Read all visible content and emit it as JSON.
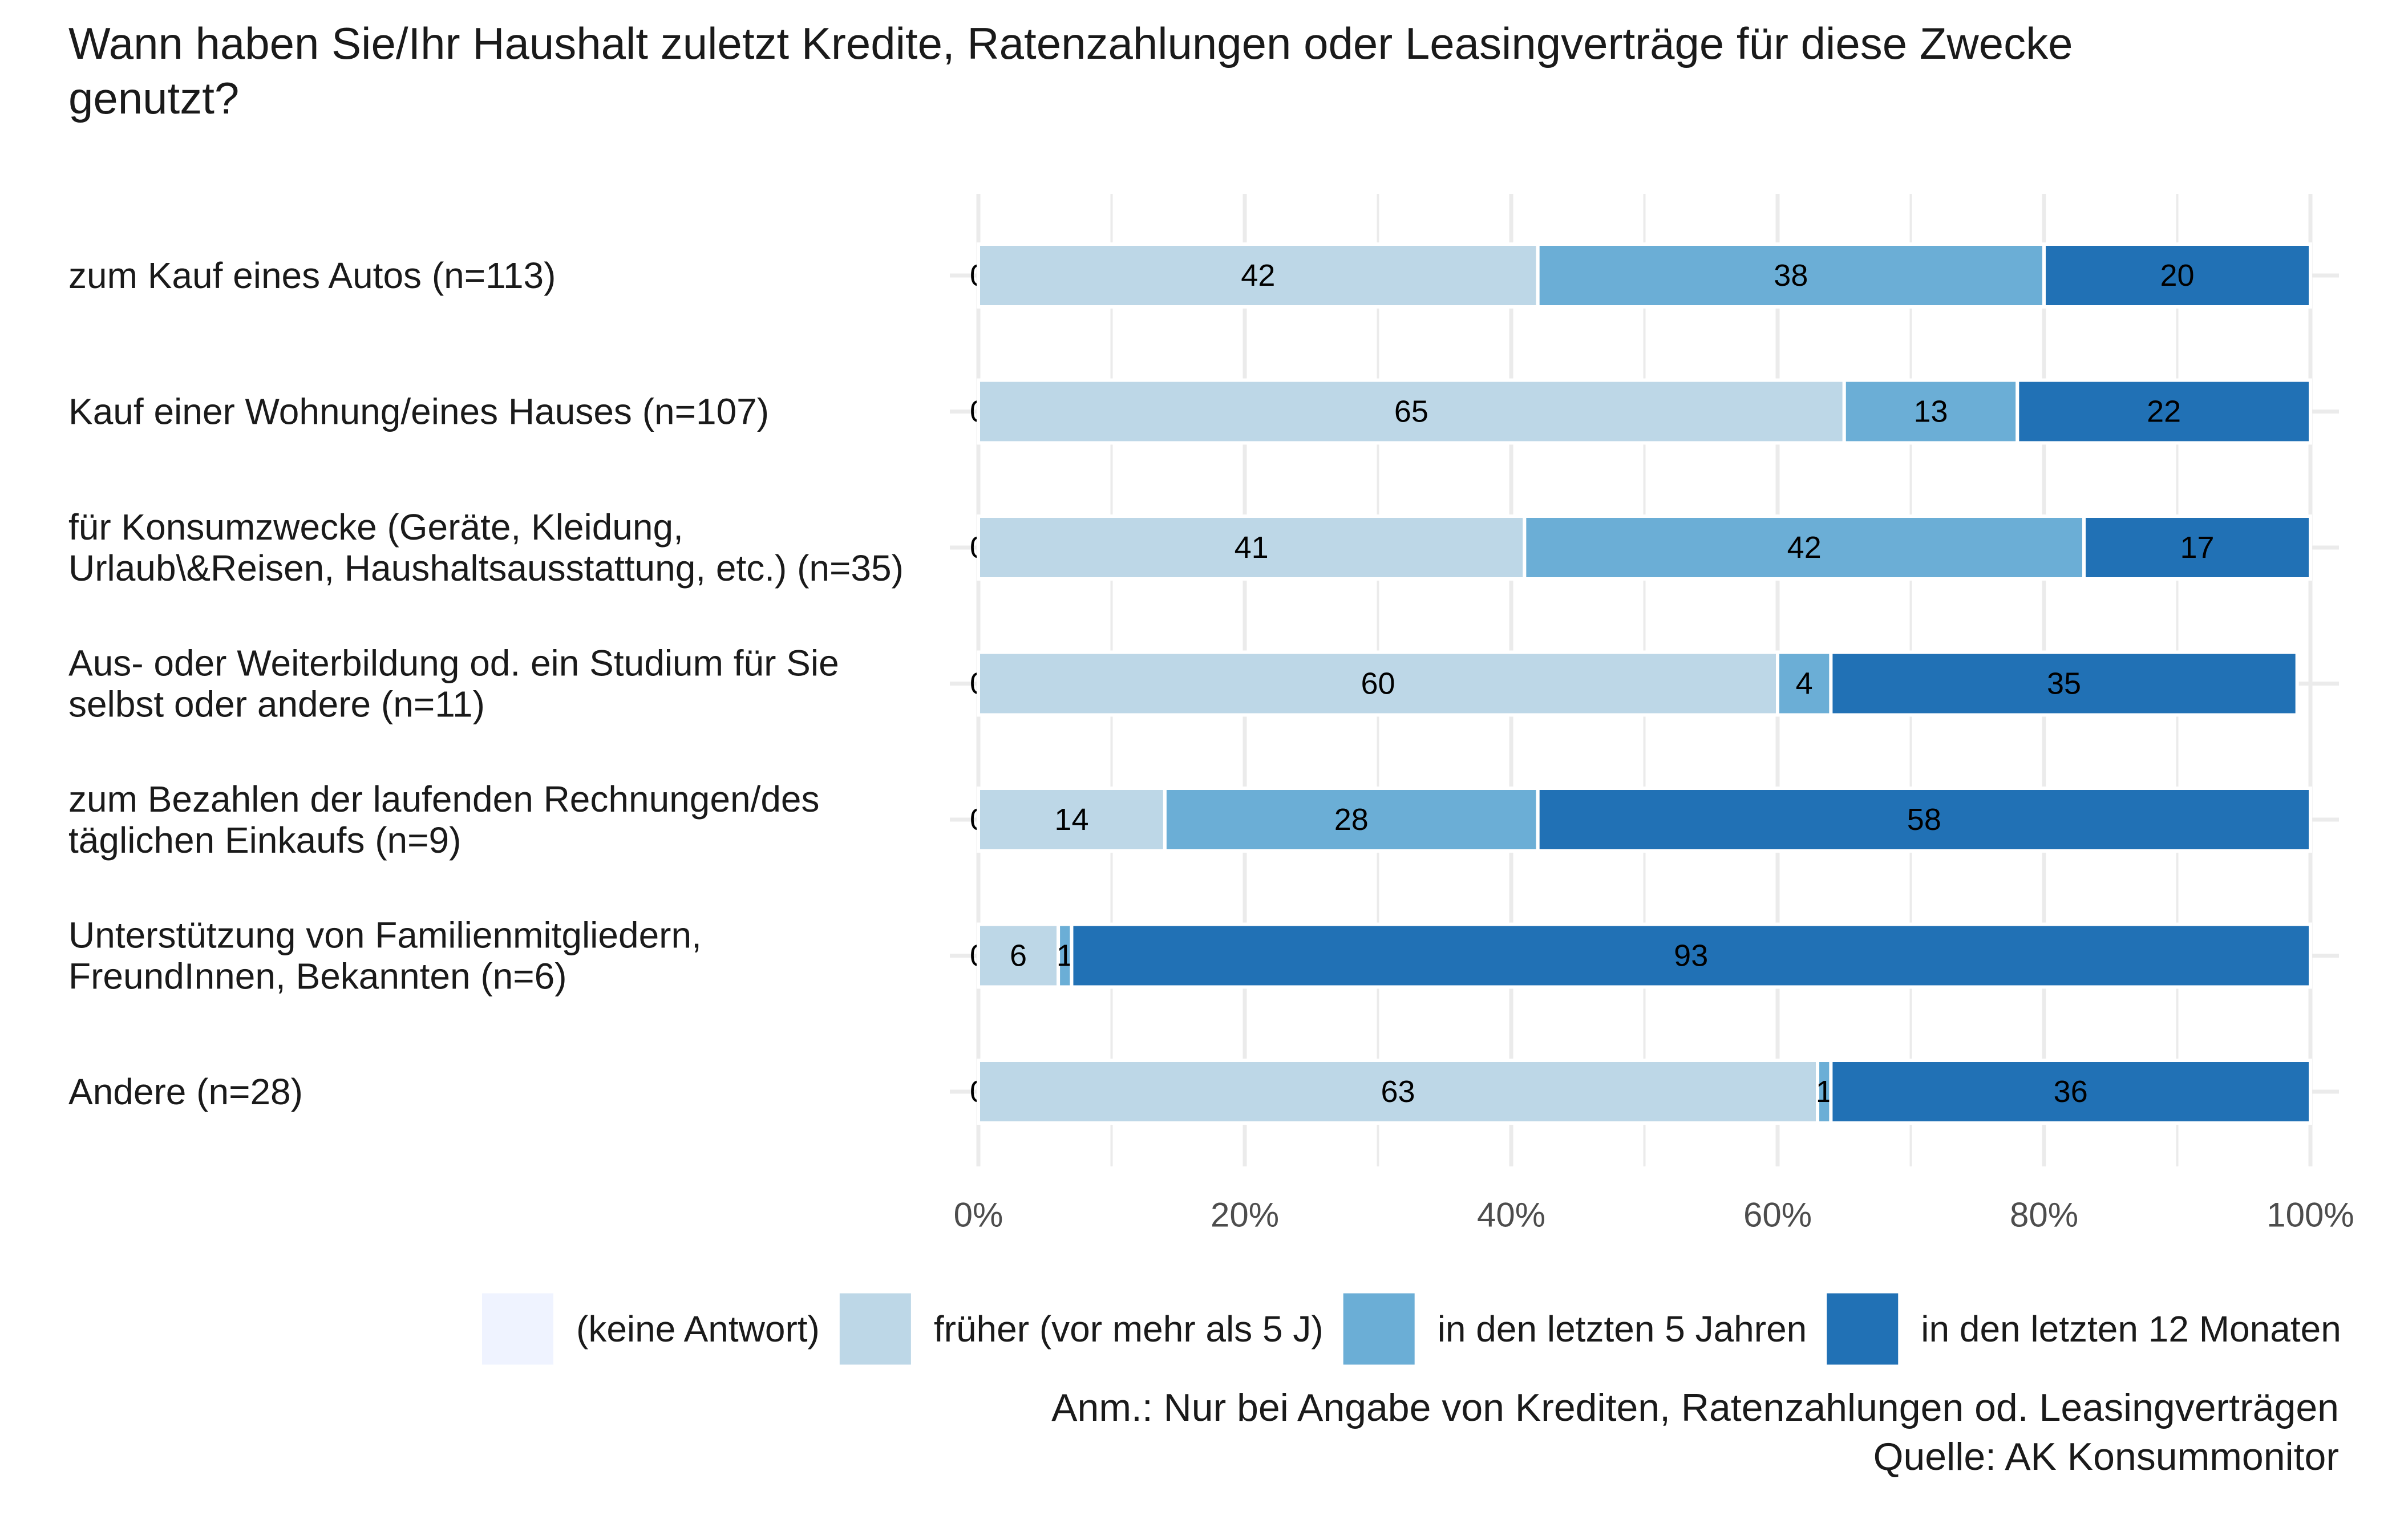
{
  "chart_data": {
    "type": "bar",
    "orientation": "horizontal",
    "stacked": true,
    "title": "Wann haben Sie/Ihr Haushalt zuletzt Kredite, Ratenzahlungen oder Leasingverträge für diese Zwecke genutzt?",
    "categories": [
      "zum Kauf eines Autos (n=113)",
      "Kauf einer Wohnung/eines Hauses (n=107)",
      "für Konsumzwecke (Geräte, Kleidung, Urlaub\\&Reisen, Haushaltsausstattung, etc.) (n=35)",
      "Aus- oder Weiterbildung od. ein Studium für Sie selbst oder andere (n=11)",
      "zum Bezahlen der laufenden Rechnungen/des täglichen Einkaufs (n=9)",
      "Unterstützung von Familienmitgliedern, FreundInnen, Bekannten (n=6)",
      "Andere (n=28)"
    ],
    "category_lines": [
      [
        "zum Kauf eines Autos (n=113)"
      ],
      [
        "Kauf einer Wohnung/eines Hauses (n=107)"
      ],
      [
        "für Konsumzwecke (Geräte, Kleidung,",
        "Urlaub\\&Reisen, Haushaltsausstattung, etc.) (n=35)"
      ],
      [
        "Aus- oder Weiterbildung od. ein Studium für Sie",
        "selbst oder andere (n=11)"
      ],
      [
        "zum Bezahlen der laufenden Rechnungen/des",
        "täglichen Einkaufs (n=9)"
      ],
      [
        "Unterstützung von Familienmitgliedern,",
        "FreundInnen, Bekannten (n=6)"
      ],
      [
        "Andere (n=28)"
      ]
    ],
    "series": [
      {
        "name": "(keine Antwort)",
        "color": "#eff3ff",
        "values": [
          0,
          0,
          0,
          0,
          0,
          0,
          0
        ]
      },
      {
        "name": "früher (vor mehr als 5 J)",
        "color": "#bdd7e7",
        "values": [
          42,
          65,
          41,
          60,
          14,
          6,
          63
        ]
      },
      {
        "name": "in den letzten 5 Jahren",
        "color": "#6baed6",
        "values": [
          38,
          13,
          42,
          4,
          28,
          1,
          1
        ]
      },
      {
        "name": "in den letzten 12 Monaten",
        "color": "#2171b5",
        "values": [
          20,
          22,
          17,
          35,
          58,
          93,
          36
        ]
      }
    ],
    "xlim": [
      0,
      100
    ],
    "xticks": [
      0,
      20,
      40,
      60,
      80,
      100
    ],
    "xtick_labels": [
      "0%",
      "20%",
      "40%",
      "60%",
      "80%",
      "100%"
    ],
    "legend_position": "bottom",
    "grid": true
  },
  "footer": {
    "note": "Anm.: Nur bei Angabe von Krediten, Ratenzahlungen od. Leasingverträgen",
    "source": "Quelle: AK Konsummonitor"
  }
}
